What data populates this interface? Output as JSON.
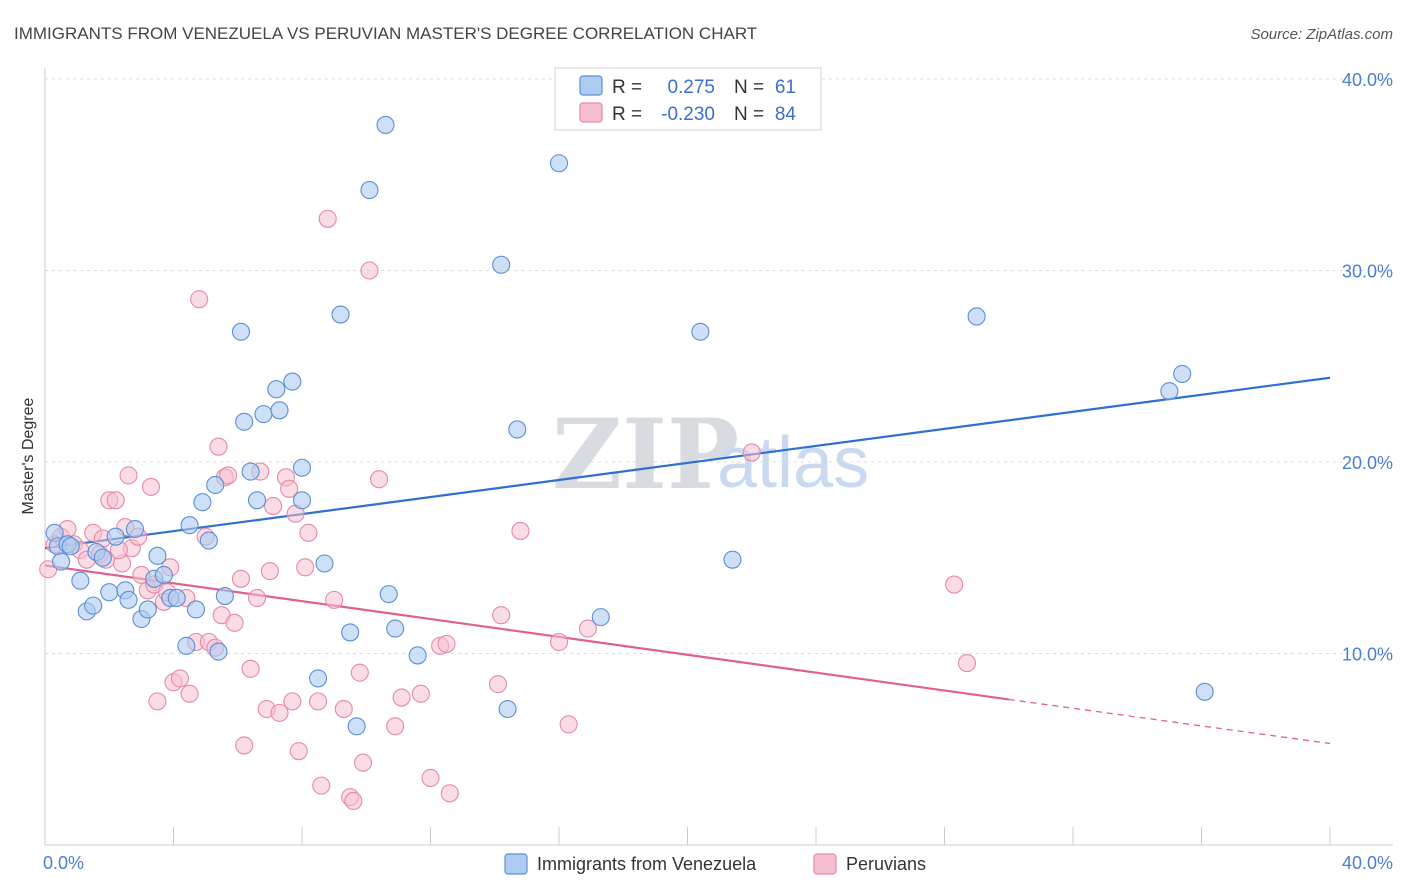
{
  "header": {
    "title": "IMMIGRANTS FROM VENEZUELA VS PERUVIAN MASTER'S DEGREE CORRELATION CHART",
    "source": "Source: ZipAtlas.com"
  },
  "watermark": {
    "zip": "ZIP",
    "atlas": "atlas"
  },
  "legend": {
    "r_label": "R =",
    "n_label": "N =",
    "series1": {
      "r": "0.275",
      "n": "61"
    },
    "series2": {
      "r": "-0.230",
      "n": "84"
    }
  },
  "bottom_legend": {
    "series1": "Immigrants from Venezuela",
    "series2": "Peruvians"
  },
  "colors": {
    "blue_fill": "#aecbf0",
    "blue_stroke": "#5b8fd6",
    "blue_line": "#2f6fd0",
    "pink_fill": "#f6bfd0",
    "pink_stroke": "#e58aa8",
    "pink_line": "#e0608e"
  },
  "chart_data": {
    "type": "scatter",
    "title": "IMMIGRANTS FROM VENEZUELA VS PERUVIAN MASTER'S DEGREE CORRELATION CHART",
    "xlabel": "",
    "ylabel": "Master's Degree",
    "xlim": [
      0,
      40
    ],
    "ylim": [
      0,
      40
    ],
    "x_tick_labels": [
      "0.0%",
      "40.0%"
    ],
    "y_ticks": [
      10,
      20,
      30,
      40
    ],
    "y_tick_labels": [
      "10.0%",
      "20.0%",
      "30.0%",
      "40.0%"
    ],
    "series": [
      {
        "name": "Immigrants from Venezuela",
        "r": 0.275,
        "n": 61,
        "trend": {
          "x0": 0,
          "y0": 15.5,
          "x1": 40,
          "y1": 24.4
        },
        "points": [
          [
            0.3,
            16.3
          ],
          [
            0.4,
            15.6
          ],
          [
            0.5,
            14.8
          ],
          [
            0.7,
            15.7
          ],
          [
            0.8,
            15.6
          ],
          [
            1.1,
            13.8
          ],
          [
            1.3,
            12.2
          ],
          [
            1.5,
            12.5
          ],
          [
            1.6,
            15.3
          ],
          [
            1.8,
            15.0
          ],
          [
            2.0,
            13.2
          ],
          [
            2.2,
            16.1
          ],
          [
            2.5,
            13.3
          ],
          [
            2.6,
            12.8
          ],
          [
            2.8,
            16.5
          ],
          [
            3.0,
            11.8
          ],
          [
            3.2,
            12.3
          ],
          [
            3.4,
            13.9
          ],
          [
            3.5,
            15.1
          ],
          [
            3.7,
            14.1
          ],
          [
            3.9,
            12.9
          ],
          [
            4.1,
            12.9
          ],
          [
            4.4,
            10.4
          ],
          [
            4.5,
            16.7
          ],
          [
            4.7,
            12.3
          ],
          [
            4.9,
            17.9
          ],
          [
            5.1,
            15.9
          ],
          [
            5.3,
            18.8
          ],
          [
            5.4,
            10.1
          ],
          [
            5.6,
            13.0
          ],
          [
            6.1,
            26.8
          ],
          [
            6.2,
            22.1
          ],
          [
            6.4,
            19.5
          ],
          [
            6.6,
            18.0
          ],
          [
            6.8,
            22.5
          ],
          [
            7.2,
            23.8
          ],
          [
            7.3,
            22.7
          ],
          [
            7.7,
            24.2
          ],
          [
            8.0,
            19.7
          ],
          [
            8.0,
            18.0
          ],
          [
            8.5,
            8.7
          ],
          [
            8.7,
            14.7
          ],
          [
            9.2,
            27.7
          ],
          [
            9.5,
            11.1
          ],
          [
            9.7,
            6.2
          ],
          [
            10.1,
            34.2
          ],
          [
            10.6,
            37.6
          ],
          [
            10.7,
            13.1
          ],
          [
            10.9,
            11.3
          ],
          [
            11.6,
            9.9
          ],
          [
            14.2,
            30.3
          ],
          [
            14.4,
            7.1
          ],
          [
            14.7,
            21.7
          ],
          [
            16.0,
            35.6
          ],
          [
            17.3,
            11.9
          ],
          [
            20.4,
            26.8
          ],
          [
            21.4,
            14.9
          ],
          [
            29.0,
            27.6
          ],
          [
            35.0,
            23.7
          ],
          [
            35.4,
            24.6
          ],
          [
            36.1,
            8.0
          ]
        ]
      },
      {
        "name": "Peruvians",
        "r": -0.23,
        "n": 84,
        "trend": {
          "x0": 0,
          "y0": 14.6,
          "x1": 30.0,
          "y1": 7.6,
          "dash_to_x": 40,
          "dash_to_y": 5.3
        },
        "points": [
          [
            0.1,
            14.4
          ],
          [
            0.3,
            15.7
          ],
          [
            0.5,
            16.1
          ],
          [
            0.7,
            16.5
          ],
          [
            0.9,
            15.7
          ],
          [
            1.1,
            15.4
          ],
          [
            1.3,
            14.9
          ],
          [
            1.5,
            16.3
          ],
          [
            1.7,
            15.2
          ],
          [
            1.8,
            16.0
          ],
          [
            1.9,
            14.9
          ],
          [
            2.0,
            18.0
          ],
          [
            2.2,
            18.0
          ],
          [
            2.4,
            14.7
          ],
          [
            2.5,
            16.6
          ],
          [
            2.6,
            19.3
          ],
          [
            2.7,
            15.5
          ],
          [
            2.9,
            16.1
          ],
          [
            3.0,
            14.1
          ],
          [
            3.2,
            13.3
          ],
          [
            3.3,
            18.7
          ],
          [
            3.4,
            13.6
          ],
          [
            3.5,
            7.5
          ],
          [
            3.7,
            12.7
          ],
          [
            3.8,
            13.2
          ],
          [
            3.9,
            14.5
          ],
          [
            4.0,
            8.5
          ],
          [
            4.2,
            8.7
          ],
          [
            4.4,
            12.9
          ],
          [
            4.5,
            7.9
          ],
          [
            4.7,
            10.6
          ],
          [
            4.8,
            28.5
          ],
          [
            5.0,
            16.1
          ],
          [
            5.1,
            10.6
          ],
          [
            5.3,
            10.3
          ],
          [
            5.4,
            20.8
          ],
          [
            5.5,
            12.0
          ],
          [
            5.6,
            19.2
          ],
          [
            5.7,
            19.3
          ],
          [
            5.9,
            11.6
          ],
          [
            6.1,
            13.9
          ],
          [
            6.2,
            5.2
          ],
          [
            6.4,
            9.2
          ],
          [
            6.6,
            12.9
          ],
          [
            6.7,
            19.5
          ],
          [
            6.9,
            7.1
          ],
          [
            7.0,
            14.3
          ],
          [
            7.1,
            17.7
          ],
          [
            7.3,
            6.9
          ],
          [
            7.5,
            19.2
          ],
          [
            7.6,
            18.6
          ],
          [
            7.7,
            7.5
          ],
          [
            7.8,
            17.3
          ],
          [
            7.9,
            4.9
          ],
          [
            8.1,
            14.5
          ],
          [
            8.2,
            16.3
          ],
          [
            8.5,
            7.5
          ],
          [
            8.6,
            3.1
          ],
          [
            8.8,
            32.7
          ],
          [
            9.0,
            12.8
          ],
          [
            9.3,
            7.1
          ],
          [
            9.5,
            2.5
          ],
          [
            9.6,
            2.3
          ],
          [
            9.8,
            9.0
          ],
          [
            9.9,
            4.3
          ],
          [
            10.1,
            30.0
          ],
          [
            10.4,
            19.1
          ],
          [
            10.9,
            6.2
          ],
          [
            11.1,
            7.7
          ],
          [
            11.7,
            7.9
          ],
          [
            12.0,
            3.5
          ],
          [
            12.3,
            10.4
          ],
          [
            12.5,
            10.5
          ],
          [
            12.6,
            2.7
          ],
          [
            14.1,
            8.4
          ],
          [
            14.2,
            12.0
          ],
          [
            14.8,
            16.4
          ],
          [
            16.0,
            10.6
          ],
          [
            16.3,
            6.3
          ],
          [
            16.9,
            11.3
          ],
          [
            22.0,
            20.5
          ],
          [
            28.3,
            13.6
          ],
          [
            28.7,
            9.5
          ],
          [
            2.3,
            15.4
          ]
        ]
      }
    ]
  }
}
